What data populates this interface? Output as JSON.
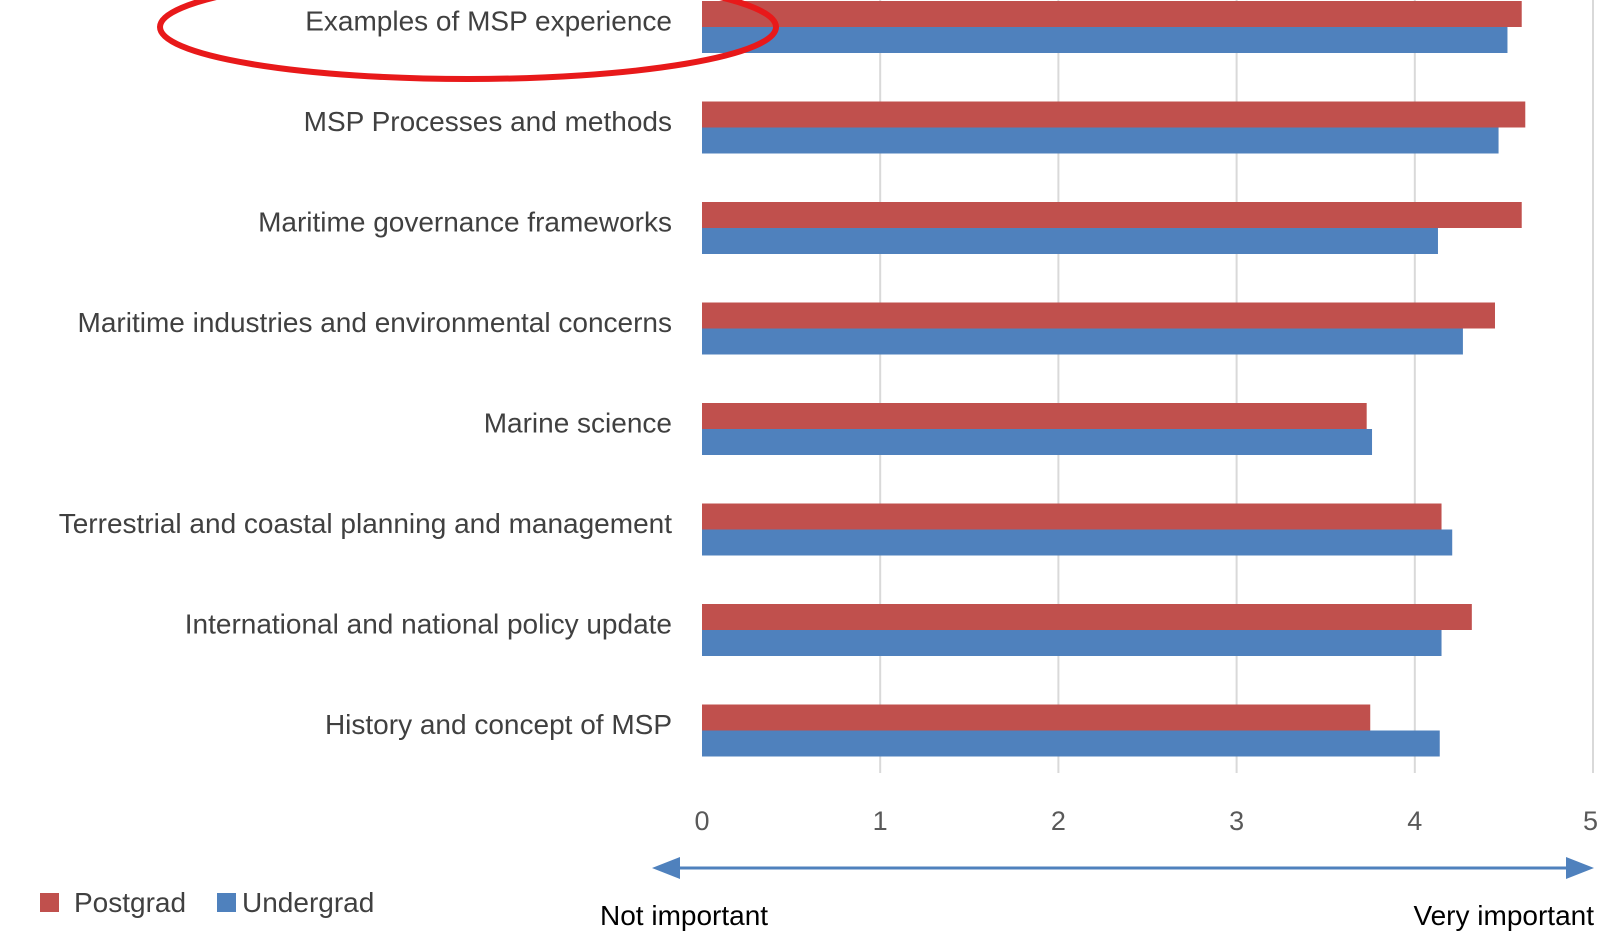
{
  "chart_data": {
    "type": "bar",
    "orientation": "horizontal",
    "title": "",
    "xlabel": "",
    "ylabel": "",
    "xlim": [
      0,
      5
    ],
    "x_ticks": [
      "0",
      "1",
      "2",
      "3",
      "4",
      "5"
    ],
    "grid": "vertical",
    "legend_position": "bottom-left",
    "categories": [
      "Examples of MSP experience",
      "MSP Processes and methods",
      "Maritime governance frameworks",
      "Maritime industries and environmental concerns",
      "Marine science",
      "Terrestrial and coastal planning and management",
      "International and national policy update",
      "History and concept of MSP"
    ],
    "series": [
      {
        "name": "Postgrad",
        "color": "#c0504d",
        "values": [
          4.6,
          4.62,
          4.6,
          4.45,
          3.73,
          4.15,
          4.32,
          3.75
        ]
      },
      {
        "name": "Undergrad",
        "color": "#4f81bd",
        "values": [
          4.52,
          4.47,
          4.13,
          4.27,
          3.76,
          4.21,
          4.15,
          4.14
        ]
      }
    ],
    "scale_labels": {
      "low": "Not important",
      "high": "Very important"
    },
    "scale_arrow_color": "#4f81bd",
    "highlight_color": "#e8191a",
    "grid_color": "#d9d9d9"
  }
}
